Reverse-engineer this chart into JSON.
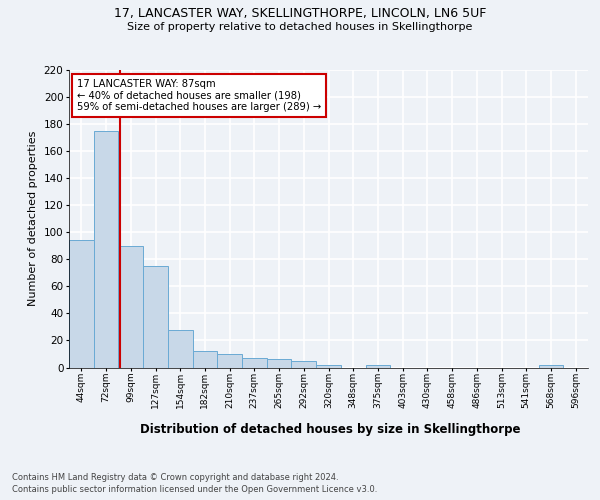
{
  "title1": "17, LANCASTER WAY, SKELLINGTHORPE, LINCOLN, LN6 5UF",
  "title2": "Size of property relative to detached houses in Skellingthorpe",
  "xlabel": "Distribution of detached houses by size in Skellingthorpe",
  "ylabel": "Number of detached properties",
  "footnote1": "Contains HM Land Registry data © Crown copyright and database right 2024.",
  "footnote2": "Contains public sector information licensed under the Open Government Licence v3.0.",
  "bar_labels": [
    "44sqm",
    "72sqm",
    "99sqm",
    "127sqm",
    "154sqm",
    "182sqm",
    "210sqm",
    "237sqm",
    "265sqm",
    "292sqm",
    "320sqm",
    "348sqm",
    "375sqm",
    "403sqm",
    "430sqm",
    "458sqm",
    "486sqm",
    "513sqm",
    "541sqm",
    "568sqm",
    "596sqm"
  ],
  "bar_values": [
    94,
    175,
    90,
    75,
    28,
    12,
    10,
    7,
    6,
    5,
    2,
    0,
    2,
    0,
    0,
    0,
    0,
    0,
    0,
    2,
    0
  ],
  "bar_color": "#c8d8e8",
  "bar_edge_color": "#6aaad4",
  "annotation_label": "17 LANCASTER WAY: 87sqm",
  "annotation_line1": "← 40% of detached houses are smaller (198)",
  "annotation_line2": "59% of semi-detached houses are larger (289) →",
  "annotation_box_color": "#ffffff",
  "annotation_box_edge": "#cc0000",
  "vline_color": "#cc0000",
  "ylim": [
    0,
    220
  ],
  "yticks": [
    0,
    20,
    40,
    60,
    80,
    100,
    120,
    140,
    160,
    180,
    200,
    220
  ],
  "background_color": "#eef2f7",
  "grid_color": "#ffffff",
  "bin_edges": [
    44,
    72,
    99,
    127,
    154,
    182,
    210,
    237,
    265,
    292,
    320,
    348,
    375,
    403,
    430,
    458,
    486,
    513,
    541,
    568,
    596,
    624
  ],
  "property_size": 87
}
